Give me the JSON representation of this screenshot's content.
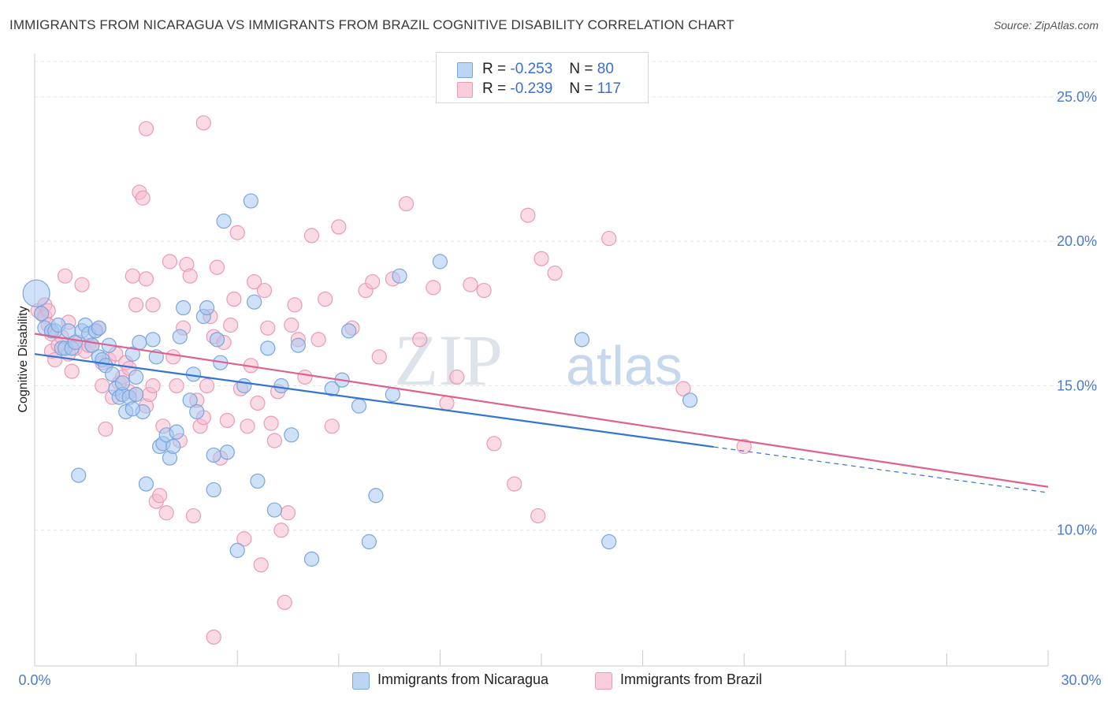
{
  "header": {
    "title": "IMMIGRANTS FROM NICARAGUA VS IMMIGRANTS FROM BRAZIL COGNITIVE DISABILITY CORRELATION CHART",
    "source": "Source: ZipAtlas.com"
  },
  "legend": {
    "rows": [
      {
        "r_label": "R =",
        "r_value": "-0.253",
        "n_label": "N =",
        "n_value": "80"
      },
      {
        "r_label": "R =",
        "r_value": "-0.239",
        "n_label": "N =",
        "n_value": "117"
      }
    ]
  },
  "colors": {
    "nicaragua_fill": "#a8c8f0",
    "nicaragua_stroke": "#7aa6e0",
    "nicaragua_line": "#3474d4",
    "brazil_fill": "#f6bcd0",
    "brazil_stroke": "#eb9ab6",
    "brazil_line": "#e06090",
    "axis_label": "#4a7bd0",
    "grid": "#e4e4e4"
  },
  "watermark": {
    "zip": "ZIP",
    "atlas": "atlas"
  },
  "chart_data": {
    "type": "scatter",
    "title": "IMMIGRANTS FROM NICARAGUA VS IMMIGRANTS FROM BRAZIL COGNITIVE DISABILITY CORRELATION CHART",
    "xlabel": "",
    "ylabel": "Cognitive Disability",
    "xlim": [
      0,
      30
    ],
    "ylim": [
      5.3,
      26.5
    ],
    "x_tick_labels": [
      "0.0%",
      "30.0%"
    ],
    "y_ticks": [
      10,
      15,
      20,
      25
    ],
    "y_tick_labels": [
      "10.0%",
      "15.0%",
      "20.0%",
      "25.0%"
    ],
    "grid": true,
    "legend_position": "top-center",
    "series": [
      {
        "name": "Immigrants from Nicaragua",
        "r": -0.253,
        "n": 80,
        "trend": {
          "x_start": 0,
          "y_start": 16.1,
          "x_solid_end": 20.1,
          "x_end": 30,
          "y_end": 11.3
        },
        "points": [
          [
            0.05,
            18.2,
            "big"
          ],
          [
            0.2,
            17.5
          ],
          [
            0.3,
            17.0
          ],
          [
            0.5,
            16.9
          ],
          [
            0.6,
            16.9
          ],
          [
            0.7,
            17.1
          ],
          [
            0.8,
            16.3
          ],
          [
            0.9,
            16.3
          ],
          [
            1.0,
            16.9
          ],
          [
            1.1,
            16.3
          ],
          [
            1.2,
            16.5
          ],
          [
            1.4,
            16.9
          ],
          [
            1.5,
            17.1
          ],
          [
            1.6,
            16.8
          ],
          [
            1.7,
            16.4
          ],
          [
            1.8,
            16.9
          ],
          [
            1.9,
            16.0
          ],
          [
            1.9,
            17.0
          ],
          [
            2.0,
            15.9
          ],
          [
            2.1,
            15.7
          ],
          [
            2.2,
            16.4
          ],
          [
            2.3,
            15.4
          ],
          [
            2.4,
            14.9
          ],
          [
            2.5,
            14.6
          ],
          [
            2.6,
            14.7
          ],
          [
            2.6,
            15.1
          ],
          [
            2.7,
            14.1
          ],
          [
            2.8,
            14.6
          ],
          [
            2.9,
            16.1
          ],
          [
            3.0,
            15.3
          ],
          [
            3.0,
            14.7
          ],
          [
            3.1,
            16.5
          ],
          [
            3.2,
            14.1
          ],
          [
            3.3,
            11.6
          ],
          [
            3.5,
            16.6
          ],
          [
            3.6,
            16.0
          ],
          [
            3.7,
            12.9
          ],
          [
            3.8,
            13.0
          ],
          [
            3.9,
            13.3
          ],
          [
            4.0,
            12.5
          ],
          [
            4.2,
            13.4
          ],
          [
            4.3,
            16.7
          ],
          [
            4.4,
            17.7
          ],
          [
            4.6,
            14.5
          ],
          [
            4.7,
            15.4
          ],
          [
            4.8,
            14.1
          ],
          [
            5.0,
            17.4
          ],
          [
            5.1,
            17.7
          ],
          [
            5.3,
            11.4
          ],
          [
            5.4,
            16.6
          ],
          [
            5.5,
            15.8
          ],
          [
            5.6,
            20.7
          ],
          [
            5.7,
            12.7
          ],
          [
            6.0,
            9.3
          ],
          [
            6.2,
            15.0
          ],
          [
            6.4,
            21.4
          ],
          [
            6.5,
            17.9
          ],
          [
            6.6,
            11.7
          ],
          [
            6.9,
            16.3
          ],
          [
            7.1,
            10.7
          ],
          [
            7.3,
            15.0
          ],
          [
            7.6,
            13.3
          ],
          [
            7.8,
            16.4
          ],
          [
            8.2,
            9.0
          ],
          [
            8.8,
            14.9
          ],
          [
            9.1,
            15.2
          ],
          [
            9.3,
            16.9
          ],
          [
            9.6,
            14.3
          ],
          [
            9.9,
            9.6
          ],
          [
            10.1,
            11.2
          ],
          [
            10.6,
            14.7
          ],
          [
            10.8,
            18.8
          ],
          [
            12.0,
            19.3
          ],
          [
            16.2,
            16.6
          ],
          [
            17.0,
            9.6
          ],
          [
            19.4,
            14.5
          ],
          [
            1.3,
            11.9
          ],
          [
            2.9,
            14.2
          ],
          [
            5.3,
            12.6
          ],
          [
            4.1,
            12.9
          ]
        ]
      },
      {
        "name": "Immigrants from Brazil",
        "r": -0.239,
        "n": 117,
        "trend": {
          "x_start": 0,
          "y_start": 16.8,
          "x_end": 30,
          "y_end": 11.5
        },
        "points": [
          [
            0.1,
            17.6
          ],
          [
            0.2,
            17.5
          ],
          [
            0.3,
            17.8
          ],
          [
            0.3,
            17.4
          ],
          [
            0.4,
            17.6
          ],
          [
            0.4,
            17.1
          ],
          [
            0.5,
            16.8
          ],
          [
            0.5,
            16.2
          ],
          [
            0.6,
            15.9
          ],
          [
            0.7,
            16.4
          ],
          [
            0.8,
            16.7
          ],
          [
            0.9,
            18.8
          ],
          [
            1.0,
            16.1
          ],
          [
            1.0,
            17.2
          ],
          [
            1.1,
            15.5
          ],
          [
            1.2,
            16.3
          ],
          [
            1.3,
            16.5
          ],
          [
            1.4,
            18.5
          ],
          [
            1.5,
            16.2
          ],
          [
            1.6,
            16.4
          ],
          [
            1.7,
            16.4
          ],
          [
            1.8,
            16.9
          ],
          [
            1.9,
            17.0
          ],
          [
            2.0,
            15.8
          ],
          [
            2.0,
            15.0
          ],
          [
            2.1,
            13.5
          ],
          [
            2.2,
            15.9
          ],
          [
            2.3,
            14.6
          ],
          [
            2.4,
            16.1
          ],
          [
            2.5,
            15.1
          ],
          [
            2.6,
            15.3
          ],
          [
            2.7,
            15.8
          ],
          [
            2.8,
            14.8
          ],
          [
            2.9,
            18.8
          ],
          [
            3.0,
            17.8
          ],
          [
            3.0,
            14.7
          ],
          [
            3.1,
            21.7
          ],
          [
            3.2,
            21.5
          ],
          [
            3.3,
            14.3
          ],
          [
            3.4,
            14.7
          ],
          [
            3.5,
            15.0
          ],
          [
            3.5,
            17.8
          ],
          [
            3.6,
            11.0
          ],
          [
            3.7,
            11.2
          ],
          [
            3.8,
            13.6
          ],
          [
            3.9,
            10.6
          ],
          [
            4.0,
            19.3
          ],
          [
            4.1,
            16.0
          ],
          [
            4.2,
            15.0
          ],
          [
            4.3,
            13.1
          ],
          [
            4.4,
            17.0
          ],
          [
            4.5,
            19.2
          ],
          [
            4.6,
            18.8
          ],
          [
            4.7,
            10.5
          ],
          [
            4.8,
            14.5
          ],
          [
            4.9,
            13.6
          ],
          [
            5.0,
            13.9
          ],
          [
            5.1,
            15.0
          ],
          [
            5.2,
            17.4
          ],
          [
            5.3,
            16.7
          ],
          [
            5.4,
            19.1
          ],
          [
            5.5,
            12.5
          ],
          [
            5.6,
            16.5
          ],
          [
            5.7,
            13.8
          ],
          [
            5.8,
            17.1
          ],
          [
            5.9,
            18.0
          ],
          [
            6.0,
            20.3
          ],
          [
            6.1,
            14.9
          ],
          [
            6.2,
            9.7
          ],
          [
            6.3,
            13.6
          ],
          [
            6.4,
            15.7
          ],
          [
            6.5,
            18.6
          ],
          [
            6.6,
            14.4
          ],
          [
            6.7,
            8.8
          ],
          [
            6.8,
            18.3
          ],
          [
            6.9,
            17.0
          ],
          [
            7.0,
            13.7
          ],
          [
            7.1,
            13.1
          ],
          [
            7.2,
            14.8
          ],
          [
            7.3,
            10.0
          ],
          [
            7.4,
            7.5
          ],
          [
            7.5,
            10.6
          ],
          [
            7.6,
            17.1
          ],
          [
            7.7,
            17.8
          ],
          [
            7.8,
            16.6
          ],
          [
            8.0,
            15.3
          ],
          [
            8.2,
            20.2
          ],
          [
            8.4,
            16.6
          ],
          [
            8.6,
            18.0
          ],
          [
            8.8,
            13.6
          ],
          [
            9.0,
            20.5
          ],
          [
            9.4,
            17.0
          ],
          [
            9.8,
            18.3
          ],
          [
            10.0,
            18.6
          ],
          [
            10.2,
            16.0
          ],
          [
            10.6,
            18.7
          ],
          [
            11.0,
            21.3
          ],
          [
            11.4,
            16.6
          ],
          [
            11.8,
            18.4
          ],
          [
            12.2,
            14.4
          ],
          [
            12.5,
            15.3
          ],
          [
            12.9,
            18.5
          ],
          [
            13.3,
            18.3
          ],
          [
            13.6,
            13.0
          ],
          [
            14.2,
            11.6
          ],
          [
            14.6,
            20.9
          ],
          [
            14.9,
            10.5
          ],
          [
            15.0,
            19.4
          ],
          [
            15.4,
            18.9
          ],
          [
            17.0,
            20.1
          ],
          [
            19.2,
            14.9
          ],
          [
            21.0,
            12.9
          ],
          [
            3.3,
            23.9
          ],
          [
            5.0,
            24.1
          ],
          [
            5.3,
            6.3
          ],
          [
            3.3,
            18.7
          ],
          [
            2.8,
            15.6
          ]
        ]
      }
    ]
  },
  "bottom_legend": {
    "items": [
      "Immigrants from Nicaragua",
      "Immigrants from Brazil"
    ]
  }
}
